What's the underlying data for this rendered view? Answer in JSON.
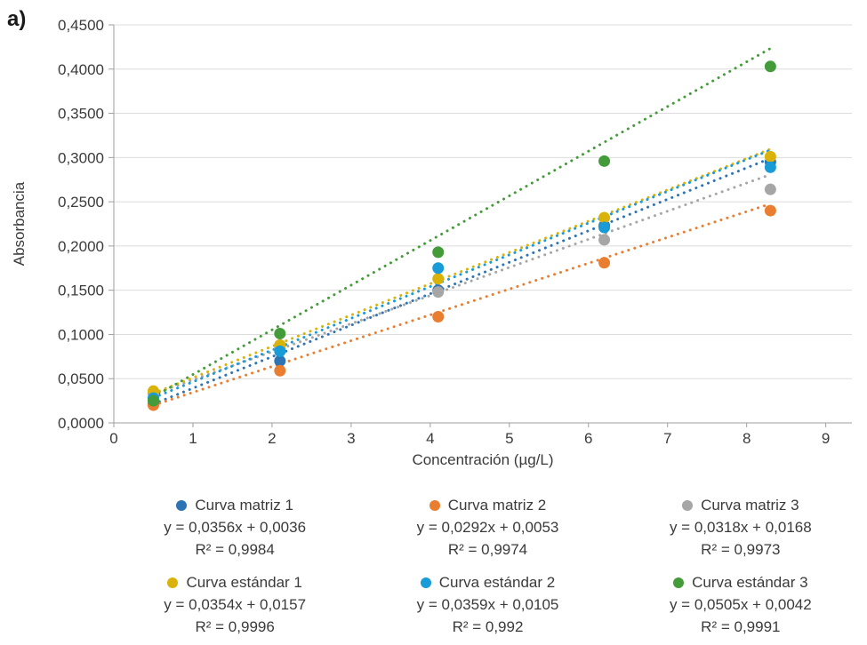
{
  "figure_label": "a)",
  "chart_data": {
    "type": "scatter",
    "title": "",
    "xlabel": "Concentración (µg/L)",
    "ylabel": "Absorbancia",
    "xlim": [
      0,
      9.33
    ],
    "ylim": [
      0,
      0.45
    ],
    "x_tick_values": [
      0,
      1,
      2,
      3,
      4,
      5,
      6,
      7,
      8,
      9
    ],
    "x_tick_labels": [
      "0",
      "1",
      "2",
      "3",
      "4",
      "5",
      "6",
      "7",
      "8",
      "9"
    ],
    "y_tick_values": [
      0,
      0.05,
      0.1,
      0.15,
      0.2,
      0.25,
      0.3,
      0.35,
      0.4,
      0.45
    ],
    "y_tick_labels": [
      "0,0000",
      "0,0500",
      "0,1000",
      "0,1500",
      "0,2000",
      "0,2500",
      "0,3000",
      "0,3500",
      "0,4000",
      "0,4500"
    ],
    "grid": "horizontal-major",
    "legend_position": "bottom",
    "trendline_style": "dotted",
    "marker_radius": 6.5,
    "x": [
      0.5,
      2.1,
      4.1,
      6.2,
      8.3
    ],
    "series": [
      {
        "name": "Curva matriz 1",
        "color": "#2d74b5",
        "values": [
          0.021,
          0.07,
          0.15,
          0.223,
          0.295
        ],
        "trend": {
          "slope": 0.0356,
          "intercept": 0.0036,
          "x_start": 0.5,
          "x_end": 8.3
        },
        "equation": "y = 0,0356x + 0,0036",
        "r2": "R² = 0,9984"
      },
      {
        "name": "Curva matriz 2",
        "color": "#e97e30",
        "values": [
          0.02,
          0.059,
          0.12,
          0.181,
          0.24
        ],
        "trend": {
          "slope": 0.0292,
          "intercept": 0.0053,
          "x_start": 0.5,
          "x_end": 8.3
        },
        "equation": "y = 0,0292x + 0,0053",
        "r2": "R² = 0,9974"
      },
      {
        "name": "Curva matriz 3",
        "color": "#a6a6a6",
        "values": [
          0.033,
          0.084,
          0.148,
          0.207,
          0.264
        ],
        "trend": {
          "slope": 0.0318,
          "intercept": 0.0168,
          "x_start": 0.5,
          "x_end": 8.3
        },
        "equation": "y = 0,0318x + 0,0168",
        "r2": "R² = 0,9973"
      },
      {
        "name": "Curva estándar 1",
        "color": "#d9b20a",
        "values": [
          0.036,
          0.088,
          0.163,
          0.232,
          0.301
        ],
        "trend": {
          "slope": 0.0354,
          "intercept": 0.0157,
          "x_start": 0.5,
          "x_end": 8.3
        },
        "equation": "y = 0,0354x + 0,0157",
        "r2": "R² = 0,9996"
      },
      {
        "name": "Curva estándar 2",
        "color": "#189bd6",
        "values": [
          0.028,
          0.081,
          0.175,
          0.221,
          0.289
        ],
        "trend": {
          "slope": 0.0359,
          "intercept": 0.0105,
          "x_start": 0.5,
          "x_end": 8.3
        },
        "equation": "y = 0,0359x + 0,0105",
        "r2": "R² = 0,992"
      },
      {
        "name": "Curva estándar 3",
        "color": "#449b39",
        "values": [
          0.025,
          0.101,
          0.193,
          0.296,
          0.403
        ],
        "trend": {
          "slope": 0.0505,
          "intercept": 0.0042,
          "x_start": 0.5,
          "x_end": 8.3
        },
        "equation": "y = 0,0505x + 0,0042",
        "r2": "R² = 0,9991"
      }
    ],
    "style_colors": {
      "gridline": "#dcdcdc",
      "axis_line": "#9e9e9e",
      "tick_text": "#3b3b3b"
    }
  }
}
